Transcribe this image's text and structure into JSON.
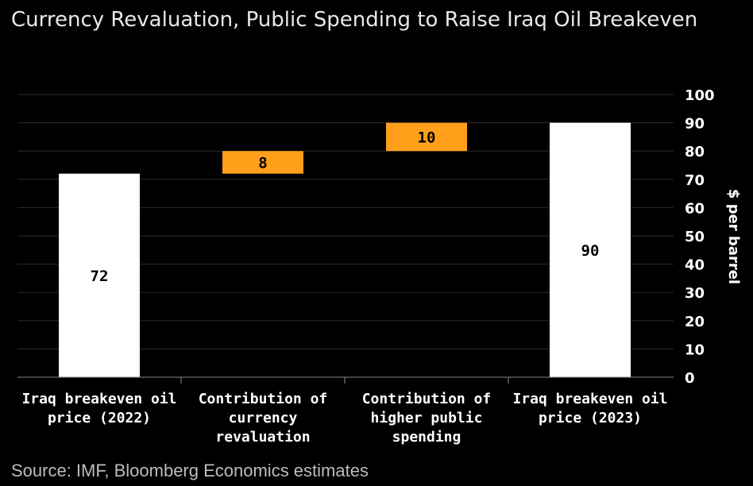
{
  "header": {
    "title": "Currency Revaluation, Public Spending to Raise Iraq Oil Breakeven"
  },
  "footer": {
    "source": "Source: IMF, Bloomberg Economics estimates"
  },
  "colors": {
    "background": "#000000",
    "total_bar": "#ffffff",
    "increment_bar": "#ff9f1a",
    "gridline": "#2b2b2b",
    "text": "#ffffff"
  },
  "chart_data": {
    "type": "bar",
    "subtype": "waterfall",
    "title": "Currency Revaluation, Public Spending to Raise Iraq Oil Breakeven",
    "ylabel": "$ per barrel",
    "ylim": [
      0,
      100
    ],
    "yticks": [
      0,
      10,
      20,
      30,
      40,
      50,
      60,
      70,
      80,
      90,
      100
    ],
    "y_axis_position": "right",
    "grid": true,
    "categories": [
      [
        "Iraq breakeven oil",
        "price (2022)"
      ],
      [
        "Contribution of",
        "currency",
        "revaluation"
      ],
      [
        "Contribution of",
        "higher public",
        "spending"
      ],
      [
        "Iraq breakeven oil",
        "price (2023)"
      ]
    ],
    "bars": [
      {
        "kind": "total",
        "start": 0,
        "end": 72,
        "label": "72"
      },
      {
        "kind": "increment",
        "start": 72,
        "end": 80,
        "label": "8"
      },
      {
        "kind": "increment",
        "start": 80,
        "end": 90,
        "label": "10"
      },
      {
        "kind": "total",
        "start": 0,
        "end": 90,
        "label": "90"
      }
    ]
  }
}
